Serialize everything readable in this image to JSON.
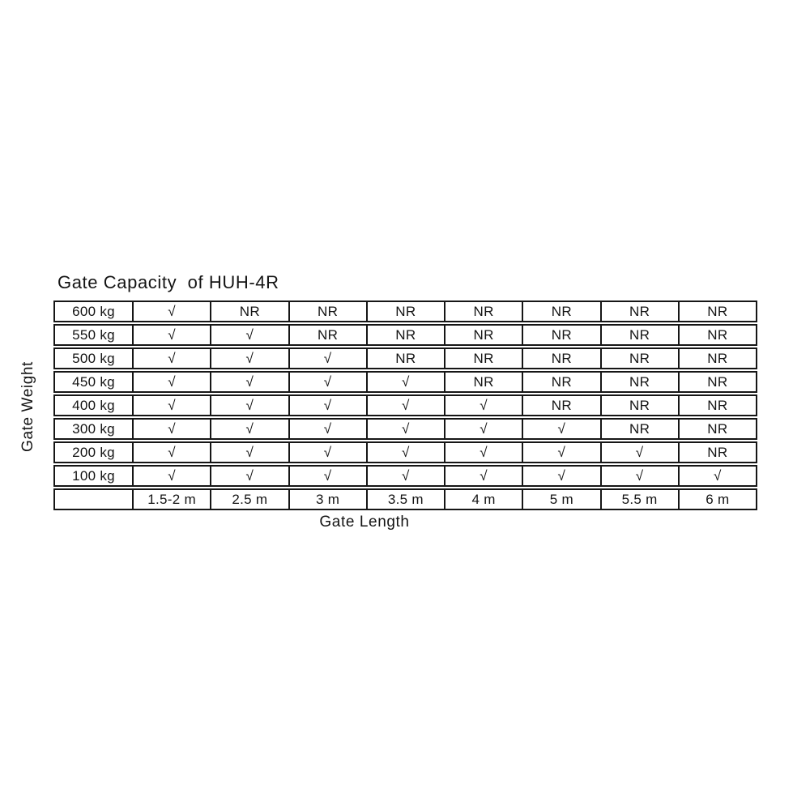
{
  "colors": {
    "background": "#ffffff",
    "text": "#141414",
    "border": "#161616"
  },
  "symbols": {
    "supported_mark": "√",
    "not_recommended_mark": "NR"
  },
  "chart_data": {
    "type": "table",
    "title": "Gate Capacity  of HUH-4R",
    "xlabel": "Gate Length",
    "ylabel": "Gate Weight",
    "row_labels": [
      "600 kg",
      "550 kg",
      "500 kg",
      "450 kg",
      "400 kg",
      "300 kg",
      "200 kg",
      "100 kg"
    ],
    "column_labels": [
      "1.5-2 m",
      "2.5 m",
      "3 m",
      "3.5 m",
      "4 m",
      "5 m",
      "5.5 m",
      "6 m"
    ],
    "cells": [
      [
        "√",
        "NR",
        "NR",
        "NR",
        "NR",
        "NR",
        "NR",
        "NR"
      ],
      [
        "√",
        "√",
        "NR",
        "NR",
        "NR",
        "NR",
        "NR",
        "NR"
      ],
      [
        "√",
        "√",
        "√",
        "NR",
        "NR",
        "NR",
        "NR",
        "NR"
      ],
      [
        "√",
        "√",
        "√",
        "√",
        "NR",
        "NR",
        "NR",
        "NR"
      ],
      [
        "√",
        "√",
        "√",
        "√",
        "√",
        "NR",
        "NR",
        "NR"
      ],
      [
        "√",
        "√",
        "√",
        "√",
        "√",
        "√",
        "NR",
        "NR"
      ],
      [
        "√",
        "√",
        "√",
        "√",
        "√",
        "√",
        "√",
        "NR"
      ],
      [
        "√",
        "√",
        "√",
        "√",
        "√",
        "√",
        "√",
        "√"
      ]
    ],
    "layout": {
      "grid": true,
      "row_style": "individually-bordered strips",
      "ylabel_orientation": "vertical-bottom-to-top"
    }
  }
}
